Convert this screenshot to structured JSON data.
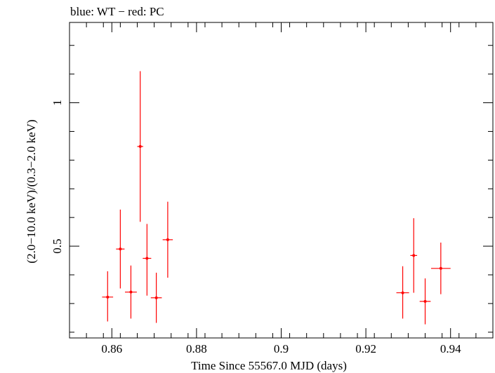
{
  "chart_data": {
    "type": "scatter",
    "title": "blue: WT − red: PC",
    "xlabel": "Time Since 55567.0 MJD (days)",
    "ylabel": "(2.0−10.0 keV)/(0.3−2.0 keV)",
    "xlim": [
      0.85,
      0.95
    ],
    "ylim": [
      0.18,
      1.28
    ],
    "x_ticks": [
      {
        "value": 0.86,
        "label": "0.86"
      },
      {
        "value": 0.88,
        "label": "0.88"
      },
      {
        "value": 0.9,
        "label": "0.9"
      },
      {
        "value": 0.92,
        "label": "0.92"
      },
      {
        "value": 0.94,
        "label": "0.94"
      }
    ],
    "y_ticks": [
      {
        "value": 0.5,
        "label": "0.5"
      },
      {
        "value": 1.0,
        "label": "1"
      }
    ],
    "grid": false,
    "series": [
      {
        "color": "#ff0000",
        "points": [
          {
            "x": 0.859,
            "xerr": 0.0013,
            "y": 0.3225,
            "ylo": 0.2375,
            "yhi": 0.4125
          },
          {
            "x": 0.862,
            "xerr": 0.001,
            "y": 0.49,
            "ylo": 0.3525,
            "yhi": 0.6275
          },
          {
            "x": 0.8645,
            "xerr": 0.0014,
            "y": 0.34,
            "ylo": 0.2475,
            "yhi": 0.4325
          },
          {
            "x": 0.8667,
            "xerr": 0.0007,
            "y": 0.8475,
            "ylo": 0.585,
            "yhi": 1.11
          },
          {
            "x": 0.8683,
            "xerr": 0.001,
            "y": 0.4575,
            "ylo": 0.3275,
            "yhi": 0.5775
          },
          {
            "x": 0.8705,
            "xerr": 0.0013,
            "y": 0.32,
            "ylo": 0.2325,
            "yhi": 0.4075
          },
          {
            "x": 0.8732,
            "xerr": 0.0012,
            "y": 0.5225,
            "ylo": 0.39,
            "yhi": 0.655
          },
          {
            "x": 0.9287,
            "xerr": 0.0015,
            "y": 0.3375,
            "ylo": 0.2475,
            "yhi": 0.43
          },
          {
            "x": 0.9313,
            "xerr": 0.0008,
            "y": 0.4675,
            "ylo": 0.3375,
            "yhi": 0.5975
          },
          {
            "x": 0.934,
            "xerr": 0.0013,
            "y": 0.3075,
            "ylo": 0.2275,
            "yhi": 0.3875
          },
          {
            "x": 0.9377,
            "xerr": 0.0023,
            "y": 0.4225,
            "ylo": 0.3325,
            "yhi": 0.5125
          }
        ]
      }
    ]
  }
}
